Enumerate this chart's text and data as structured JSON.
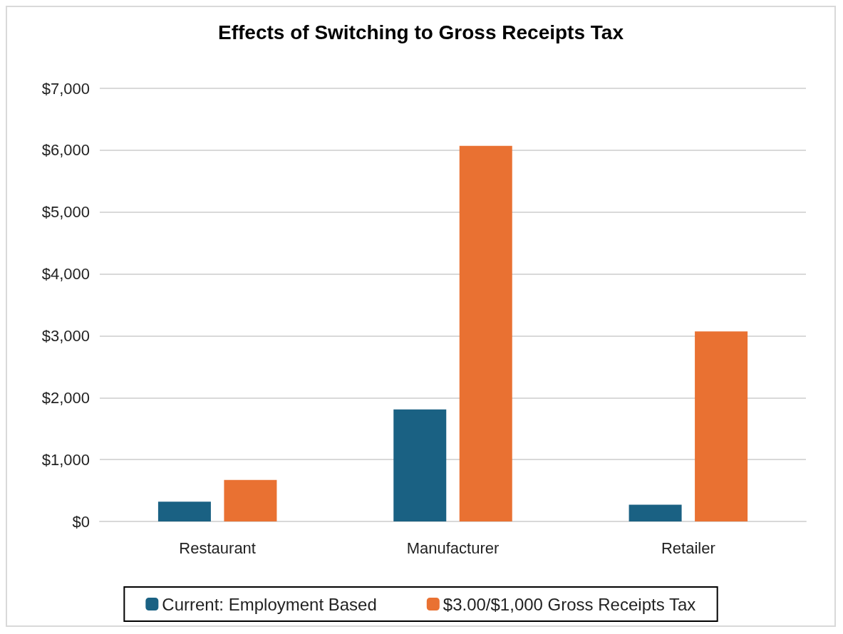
{
  "chart_data": {
    "type": "bar",
    "title": "Effects of Switching to Gross Receipts Tax",
    "categories": [
      "Restaurant",
      "Manufacturer",
      "Retailer"
    ],
    "series": [
      {
        "name": "Current: Employment Based",
        "color": "#1a6183",
        "values": [
          320,
          1810,
          270
        ]
      },
      {
        "name": "$3.00/$1,000 Gross Receipts Tax",
        "color": "#e97132",
        "values": [
          670,
          6070,
          3070
        ]
      }
    ],
    "ylim": [
      0,
      7000
    ],
    "yticks": [
      {
        "value": 0,
        "label": "$0"
      },
      {
        "value": 1000,
        "label": "$1,000"
      },
      {
        "value": 2000,
        "label": "$2,000"
      },
      {
        "value": 3000,
        "label": "$3,000"
      },
      {
        "value": 4000,
        "label": "$4,000"
      },
      {
        "value": 5000,
        "label": "$5,000"
      },
      {
        "value": 6000,
        "label": "$6,000"
      },
      {
        "value": 7000,
        "label": "$7,000"
      }
    ],
    "grid": "y",
    "legend": "bottom"
  }
}
